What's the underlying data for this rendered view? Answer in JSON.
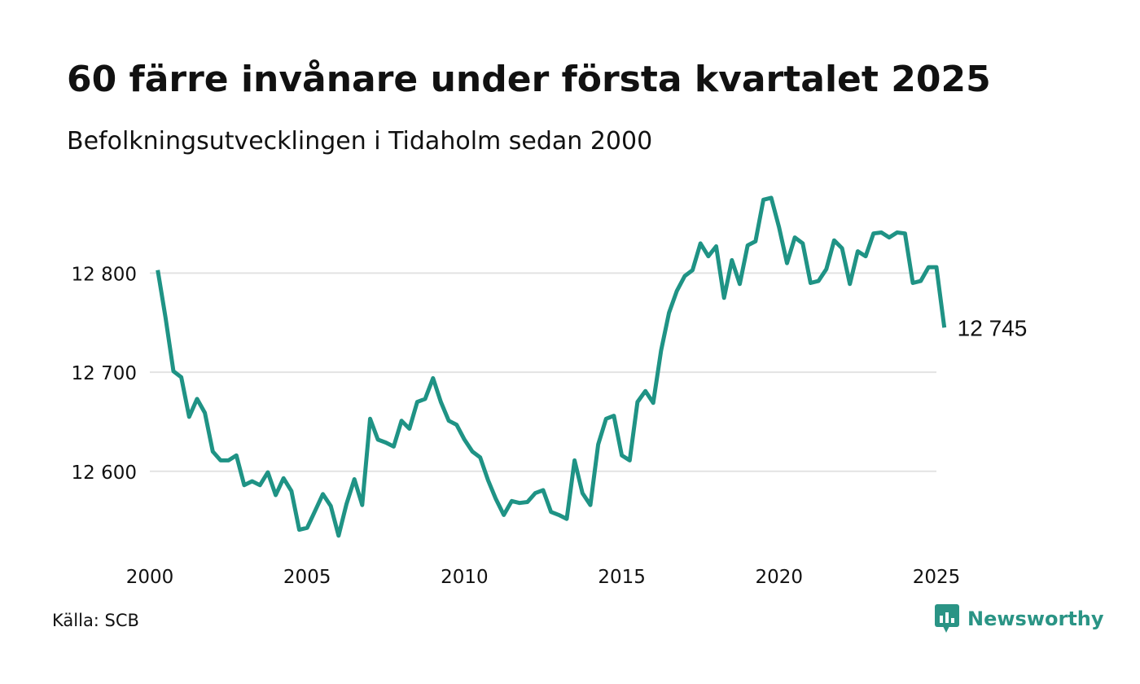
{
  "title": "60 färre invånare under första kvartalet 2025",
  "subtitle": "Befolkningsutvecklingen i Tidaholm sedan 2000",
  "source": "Källa: SCB",
  "brand": {
    "name": "Newsworthy",
    "color": "#2a9485",
    "icon": "bar-chart-speech-bubble-icon"
  },
  "colors": {
    "line": "#1f9385",
    "grid": "#e3e3e3",
    "text": "#111111"
  },
  "chart_data": {
    "type": "line",
    "title": "60 färre invånare under första kvartalet 2025",
    "subtitle": "Befolkningsutvecklingen i Tidaholm sedan 2000",
    "xlabel": "",
    "ylabel": "",
    "xlim": [
      2000,
      2025
    ],
    "ylim": [
      12530,
      12880
    ],
    "grid": true,
    "x_ticks": [
      2000,
      2005,
      2010,
      2015,
      2020,
      2025
    ],
    "x_tick_labels": [
      "2000",
      "2005",
      "2010",
      "2015",
      "2020",
      "2025"
    ],
    "y_ticks": [
      12600,
      12700,
      12800
    ],
    "y_tick_labels": [
      "12 600",
      "12 700",
      "12 800"
    ],
    "end_label": "12 745",
    "series": [
      {
        "x": [
          2000.25,
          2000.5,
          2000.75,
          2001.0,
          2001.25,
          2001.5,
          2001.75,
          2002.0,
          2002.25,
          2002.5,
          2002.75,
          2003.0,
          2003.25,
          2003.5,
          2003.75,
          2004.0,
          2004.25,
          2004.5,
          2004.75,
          2005.0,
          2005.25,
          2005.5,
          2005.75,
          2006.0,
          2006.25,
          2006.5,
          2006.75,
          2007.0,
          2007.25,
          2007.5,
          2007.75,
          2008.0,
          2008.25,
          2008.5,
          2008.75,
          2009.0,
          2009.25,
          2009.5,
          2009.75,
          2010.0,
          2010.25,
          2010.5,
          2010.75,
          2011.0,
          2011.25,
          2011.5,
          2011.75,
          2012.0,
          2012.25,
          2012.5,
          2012.75,
          2013.0,
          2013.25,
          2013.5,
          2013.75,
          2014.0,
          2014.25,
          2014.5,
          2014.75,
          2015.0,
          2015.25,
          2015.5,
          2015.75,
          2016.0,
          2016.25,
          2016.5,
          2016.75,
          2017.0,
          2017.25,
          2017.5,
          2017.75,
          2018.0,
          2018.25,
          2018.5,
          2018.75,
          2019.0,
          2019.25,
          2019.5,
          2019.75,
          2020.0,
          2020.25,
          2020.5,
          2020.75,
          2021.0,
          2021.25,
          2021.5,
          2021.75,
          2022.0,
          2022.25,
          2022.5,
          2022.75,
          2023.0,
          2023.25,
          2023.5,
          2023.75,
          2024.0,
          2024.25,
          2024.5,
          2024.75,
          2025.0,
          2025.25
        ],
        "values": [
          12803,
          12755,
          12701,
          12695,
          12655,
          12673,
          12659,
          12620,
          12611,
          12611,
          12616,
          12586,
          12590,
          12586,
          12599,
          12576,
          12593,
          12580,
          12541,
          12543,
          12560,
          12577,
          12565,
          12535,
          12567,
          12592,
          12566,
          12653,
          12632,
          12629,
          12625,
          12651,
          12643,
          12670,
          12673,
          12694,
          12670,
          12651,
          12647,
          12632,
          12620,
          12614,
          12591,
          12572,
          12556,
          12570,
          12568,
          12569,
          12578,
          12581,
          12559,
          12556,
          12552,
          12611,
          12578,
          12566,
          12627,
          12653,
          12656,
          12616,
          12611,
          12670,
          12681,
          12669,
          12722,
          12760,
          12782,
          12797,
          12803,
          12830,
          12817,
          12827,
          12775,
          12813,
          12789,
          12828,
          12832,
          12874,
          12876,
          12846,
          12810,
          12836,
          12830,
          12790,
          12792,
          12804,
          12833,
          12825,
          12789,
          12822,
          12817,
          12840,
          12841,
          12836,
          12841,
          12840,
          12790,
          12792,
          12806,
          12806,
          12745
        ]
      }
    ]
  }
}
